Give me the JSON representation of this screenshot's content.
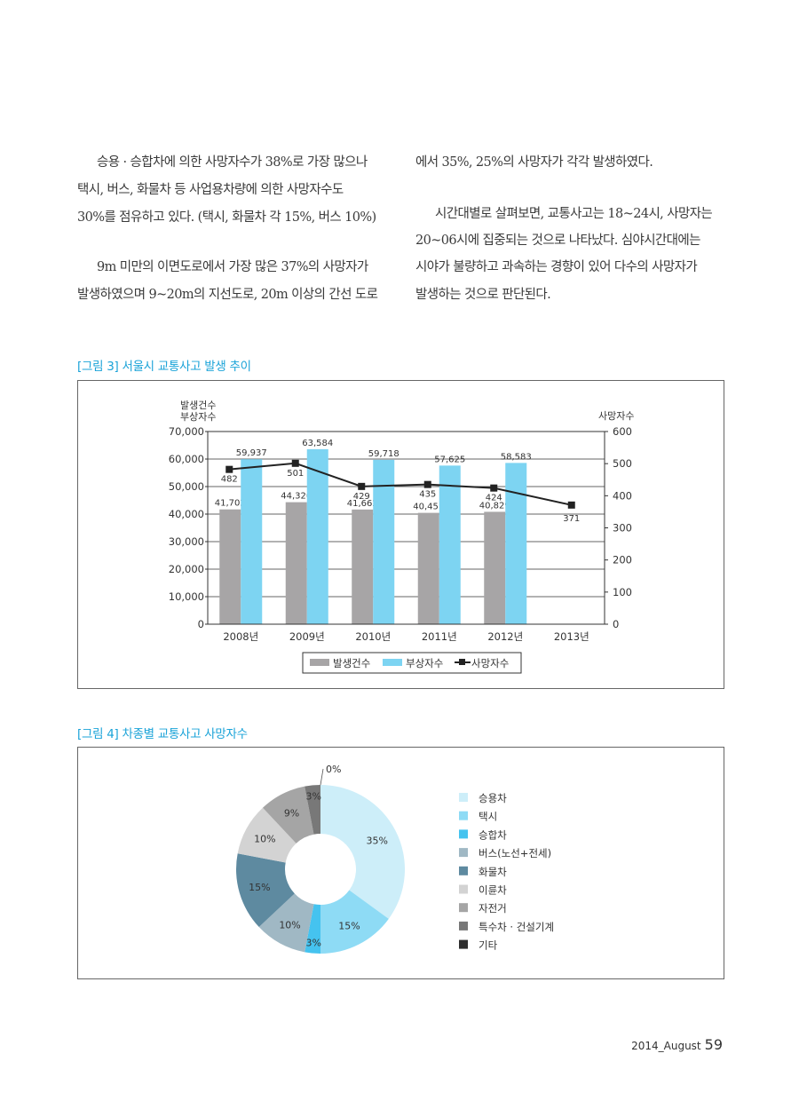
{
  "body": {
    "left_col": [
      "승용 · 승합차에 의한 사망자수가 38%로 가장 많으나",
      "택시, 버스, 화물차 등 사업용차량에 의한 사망자수도",
      "30%를 점유하고 있다. (택시, 화물차 각 15%, 버스 10%)",
      "",
      "9m 미만의 이면도로에서 가장 많은 37%의 사망자가",
      "발생하였으며 9~20m의 지선도로, 20m 이상의 간선 도로"
    ],
    "right_col": [
      "에서 35%, 25%의 사망자가 각각 발생하였다.",
      "",
      "시간대별로 살펴보면, 교통사고는 18~24시, 사망자는",
      "20~06시에 집중되는 것으로 나타났다. 심야시간대에는",
      "시야가 불량하고 과속하는 경향이 있어 다수의 사망자가",
      "발생하는 것으로 판단된다."
    ]
  },
  "figure3": {
    "title": "[그림 3] 서울시 교통사고 발생 추이"
  },
  "figure4": {
    "title": "[그림 4] 차종별 교통사고 사망자수"
  },
  "footer": {
    "issue": "2014_August",
    "page": "59"
  },
  "chart_data": [
    {
      "type": "bar",
      "categories": [
        "2008년",
        "2009년",
        "2010년",
        "2011년",
        "2012년",
        "2013년"
      ],
      "y_left_label": [
        "발생건수",
        "부상자수"
      ],
      "y_right_label": "사망자수",
      "ylim_left": [
        0,
        70000
      ],
      "ylim_right": [
        0,
        600
      ],
      "yticks_left": [
        "0",
        "10,000",
        "20,000",
        "30,000",
        "40,000",
        "50,000",
        "60,000",
        "70,000"
      ],
      "yticks_right": [
        "0",
        "100",
        "200",
        "300",
        "400",
        "500",
        "600"
      ],
      "series": [
        {
          "name": "발생건수",
          "kind": "bar",
          "axis": "left",
          "color": "#a7a5a6",
          "values": [
            41702,
            44320,
            41662,
            40451,
            40829,
            null
          ],
          "labels": [
            "41,702",
            "44,320",
            "41,662",
            "40,451",
            "40,829",
            ""
          ]
        },
        {
          "name": "부상자수",
          "kind": "bar",
          "axis": "left",
          "color": "#7dd4f2",
          "values": [
            59937,
            63584,
            59718,
            57625,
            58583,
            null
          ],
          "labels": [
            "59,937",
            "63,584",
            "59,718",
            "57,625",
            "58,583",
            ""
          ]
        },
        {
          "name": "사망자수",
          "kind": "line",
          "axis": "right",
          "color": "#222222",
          "values": [
            482,
            501,
            429,
            435,
            424,
            371
          ],
          "labels": [
            "482",
            "501",
            "429",
            "435",
            "424",
            "371"
          ]
        }
      ],
      "legend": "bottom"
    },
    {
      "type": "pie",
      "donut": true,
      "categories": [
        "승용차",
        "택시",
        "승합차",
        "버스(노선+전세)",
        "화물차",
        "이륜차",
        "자전거",
        "특수차 · 건설기계",
        "기타"
      ],
      "values": [
        35,
        15,
        3,
        10,
        15,
        10,
        9,
        3,
        0
      ],
      "labels": [
        "35%",
        "15%",
        "3%",
        "10%",
        "15%",
        "10%",
        "9%",
        "3%",
        "0%"
      ],
      "colors": [
        "#cdeef9",
        "#8edbf5",
        "#45c3ef",
        "#a0b8c4",
        "#5e8aa0",
        "#d3d3d3",
        "#a5a5a5",
        "#787878",
        "#2e2e2e"
      ],
      "legend": "right"
    }
  ]
}
